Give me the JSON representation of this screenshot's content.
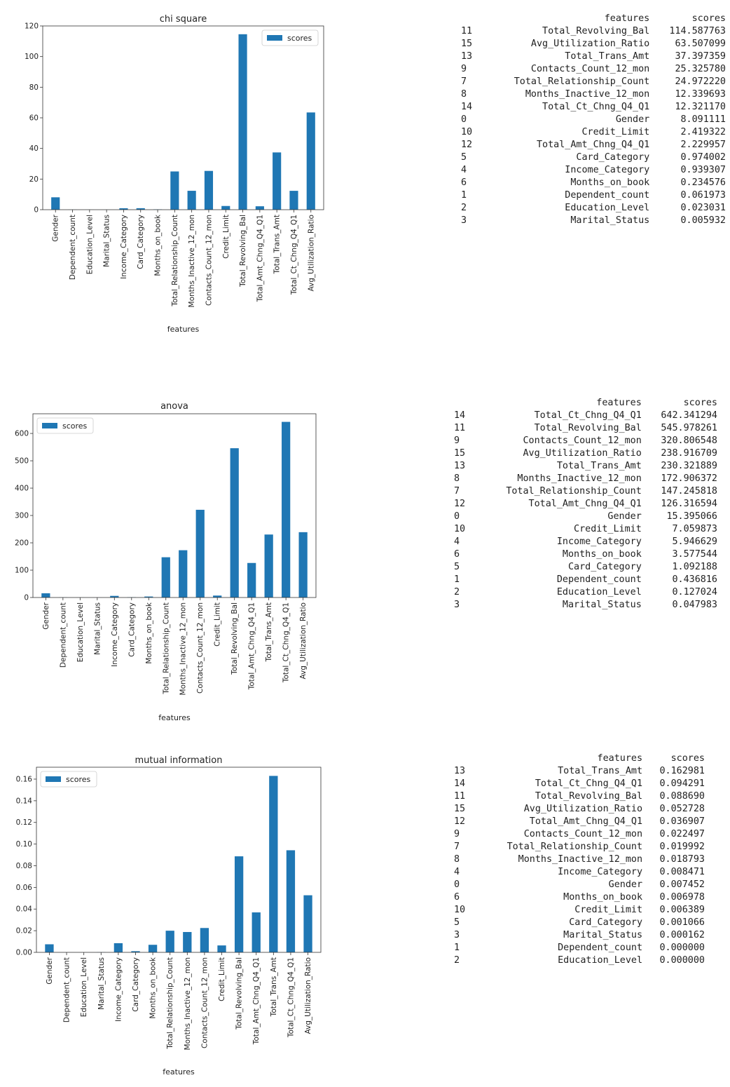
{
  "chart_data": [
    {
      "type": "bar",
      "title": "chi square",
      "xlabel": "features",
      "ylabel": "",
      "ylim": [
        0,
        120
      ],
      "yticks": [
        "0",
        "20",
        "40",
        "60",
        "80",
        "100",
        "120"
      ],
      "legend": {
        "position": "top-right",
        "label": "scores"
      },
      "color": "#1f77b4",
      "categories": [
        "Gender",
        "Dependent_count",
        "Education_Level",
        "Marital_Status",
        "Income_Category",
        "Card_Category",
        "Months_on_book",
        "Total_Relationship_Count",
        "Months_Inactive_12_mon",
        "Contacts_Count_12_mon",
        "Credit_Limit",
        "Total_Revolving_Bal",
        "Total_Amt_Chng_Q4_Q1",
        "Total_Trans_Amt",
        "Total_Ct_Chng_Q4_Q1",
        "Avg_Utilization_Ratio"
      ],
      "series": [
        {
          "name": "scores",
          "values": [
            8.091111,
            0.061973,
            0.023031,
            0.005932,
            0.939307,
            0.974002,
            0.234576,
            24.97222,
            12.339693,
            25.32578,
            2.419322,
            114.587763,
            2.229957,
            37.397359,
            12.32117,
            63.507099
          ]
        }
      ]
    },
    {
      "type": "bar",
      "title": "anova",
      "xlabel": "features",
      "ylabel": "",
      "ylim": [
        0,
        672
      ],
      "yticks": [
        "0",
        "100",
        "200",
        "300",
        "400",
        "500",
        "600"
      ],
      "legend": {
        "position": "top-left",
        "label": "scores"
      },
      "color": "#1f77b4",
      "categories": [
        "Gender",
        "Dependent_count",
        "Education_Level",
        "Marital_Status",
        "Income_Category",
        "Card_Category",
        "Months_on_book",
        "Total_Relationship_Count",
        "Months_Inactive_12_mon",
        "Contacts_Count_12_mon",
        "Credit_Limit",
        "Total_Revolving_Bal",
        "Total_Amt_Chng_Q4_Q1",
        "Total_Trans_Amt",
        "Total_Ct_Chng_Q4_Q1",
        "Avg_Utilization_Ratio"
      ],
      "series": [
        {
          "name": "scores",
          "values": [
            15.395066,
            0.436816,
            0.127024,
            0.047983,
            5.946629,
            1.092188,
            3.577544,
            147.245818,
            172.906372,
            320.806548,
            7.059873,
            545.978261,
            126.316594,
            230.321889,
            642.341294,
            238.916709
          ]
        }
      ]
    },
    {
      "type": "bar",
      "title": "mutual information",
      "xlabel": "features",
      "ylabel": "",
      "ylim": [
        0,
        0.171
      ],
      "yticks": [
        "0.00",
        "0.02",
        "0.04",
        "0.06",
        "0.08",
        "0.10",
        "0.12",
        "0.14",
        "0.16"
      ],
      "legend": {
        "position": "top-left",
        "label": "scores"
      },
      "color": "#1f77b4",
      "categories": [
        "Gender",
        "Dependent_count",
        "Education_Level",
        "Marital_Status",
        "Income_Category",
        "Card_Category",
        "Months_on_book",
        "Total_Relationship_Count",
        "Months_Inactive_12_mon",
        "Contacts_Count_12_mon",
        "Credit_Limit",
        "Total_Revolving_Bal",
        "Total_Amt_Chng_Q4_Q1",
        "Total_Trans_Amt",
        "Total_Ct_Chng_Q4_Q1",
        "Avg_Utilization_Ratio"
      ],
      "series": [
        {
          "name": "scores",
          "values": [
            0.007452,
            0.0,
            0.0,
            0.000162,
            0.008471,
            0.001066,
            0.006978,
            0.019992,
            0.018793,
            0.022497,
            0.006389,
            0.08869,
            0.036907,
            0.162981,
            0.094291,
            0.052728
          ]
        }
      ]
    }
  ],
  "tables": [
    {
      "header": [
        "",
        "features",
        "scores"
      ],
      "rows": [
        [
          "11",
          "Total_Revolving_Bal",
          "114.587763"
        ],
        [
          "15",
          "Avg_Utilization_Ratio",
          "63.507099"
        ],
        [
          "13",
          "Total_Trans_Amt",
          "37.397359"
        ],
        [
          "9",
          "Contacts_Count_12_mon",
          "25.325780"
        ],
        [
          "7",
          "Total_Relationship_Count",
          "24.972220"
        ],
        [
          "8",
          "Months_Inactive_12_mon",
          "12.339693"
        ],
        [
          "14",
          "Total_Ct_Chng_Q4_Q1",
          "12.321170"
        ],
        [
          "0",
          "Gender",
          "8.091111"
        ],
        [
          "10",
          "Credit_Limit",
          "2.419322"
        ],
        [
          "12",
          "Total_Amt_Chng_Q4_Q1",
          "2.229957"
        ],
        [
          "5",
          "Card_Category",
          "0.974002"
        ],
        [
          "4",
          "Income_Category",
          "0.939307"
        ],
        [
          "6",
          "Months_on_book",
          "0.234576"
        ],
        [
          "1",
          "Dependent_count",
          "0.061973"
        ],
        [
          "2",
          "Education_Level",
          "0.023031"
        ],
        [
          "3",
          "Marital_Status",
          "0.005932"
        ]
      ]
    },
    {
      "header": [
        "",
        "features",
        "scores"
      ],
      "rows": [
        [
          "14",
          "Total_Ct_Chng_Q4_Q1",
          "642.341294"
        ],
        [
          "11",
          "Total_Revolving_Bal",
          "545.978261"
        ],
        [
          "9",
          "Contacts_Count_12_mon",
          "320.806548"
        ],
        [
          "15",
          "Avg_Utilization_Ratio",
          "238.916709"
        ],
        [
          "13",
          "Total_Trans_Amt",
          "230.321889"
        ],
        [
          "8",
          "Months_Inactive_12_mon",
          "172.906372"
        ],
        [
          "7",
          "Total_Relationship_Count",
          "147.245818"
        ],
        [
          "12",
          "Total_Amt_Chng_Q4_Q1",
          "126.316594"
        ],
        [
          "0",
          "Gender",
          "15.395066"
        ],
        [
          "10",
          "Credit_Limit",
          "7.059873"
        ],
        [
          "4",
          "Income_Category",
          "5.946629"
        ],
        [
          "6",
          "Months_on_book",
          "3.577544"
        ],
        [
          "5",
          "Card_Category",
          "1.092188"
        ],
        [
          "1",
          "Dependent_count",
          "0.436816"
        ],
        [
          "2",
          "Education_Level",
          "0.127024"
        ],
        [
          "3",
          "Marital_Status",
          "0.047983"
        ]
      ]
    },
    {
      "header": [
        "",
        "features",
        "scores"
      ],
      "rows": [
        [
          "13",
          "Total_Trans_Amt",
          "0.162981"
        ],
        [
          "14",
          "Total_Ct_Chng_Q4_Q1",
          "0.094291"
        ],
        [
          "11",
          "Total_Revolving_Bal",
          "0.088690"
        ],
        [
          "15",
          "Avg_Utilization_Ratio",
          "0.052728"
        ],
        [
          "12",
          "Total_Amt_Chng_Q4_Q1",
          "0.036907"
        ],
        [
          "9",
          "Contacts_Count_12_mon",
          "0.022497"
        ],
        [
          "7",
          "Total_Relationship_Count",
          "0.019992"
        ],
        [
          "8",
          "Months_Inactive_12_mon",
          "0.018793"
        ],
        [
          "4",
          "Income_Category",
          "0.008471"
        ],
        [
          "0",
          "Gender",
          "0.007452"
        ],
        [
          "6",
          "Months_on_book",
          "0.006978"
        ],
        [
          "10",
          "Credit_Limit",
          "0.006389"
        ],
        [
          "5",
          "Card_Category",
          "0.001066"
        ],
        [
          "3",
          "Marital_Status",
          "0.000162"
        ],
        [
          "1",
          "Dependent_count",
          "0.000000"
        ],
        [
          "2",
          "Education_Level",
          "0.000000"
        ]
      ]
    }
  ]
}
